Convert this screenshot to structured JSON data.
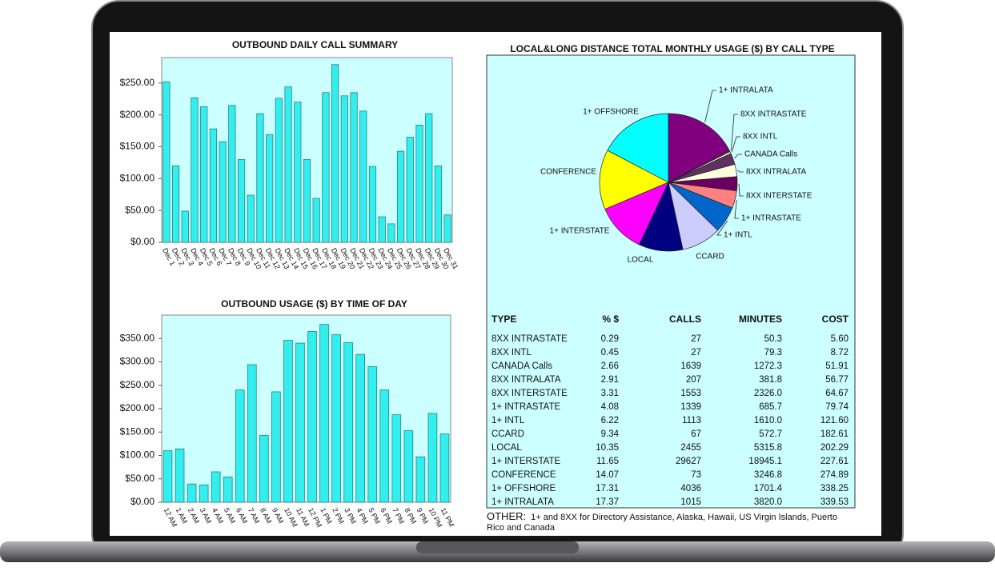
{
  "chart_data": [
    {
      "type": "bar",
      "title": "OUTBOUND DAILY CALL SUMMARY",
      "color": "#33eeee",
      "categories": [
        "Dec 1",
        "Dec 2",
        "Dec 3",
        "Dec 4",
        "Dec 5",
        "Dec 6",
        "Dec 7",
        "Dec 8",
        "Dec 9",
        "Dec 10",
        "Dec 11",
        "Dec 12",
        "Dec 13",
        "Dec 14",
        "Dec 15",
        "Dec 16",
        "Dec 17",
        "Dec 18",
        "Dec 19",
        "Dec 20",
        "Dec 21",
        "Dec 22",
        "Dec 23",
        "Dec 24",
        "Dec 25",
        "Dec 26",
        "Dec 27",
        "Dec 28",
        "Dec 29",
        "Dec 30",
        "Dec 31"
      ],
      "values": [
        252,
        120,
        49,
        227,
        213,
        178,
        158,
        215,
        130,
        74,
        202,
        169,
        226,
        244,
        220,
        130,
        69,
        235,
        279,
        230,
        235,
        206,
        119,
        40,
        29,
        143,
        165,
        184,
        202,
        120,
        43
      ],
      "ylim": [
        0,
        290
      ],
      "yticks": [
        {
          "value": 0,
          "label": "$0.00"
        },
        {
          "value": 50,
          "label": "$50.00"
        },
        {
          "value": 100,
          "label": "$100.00"
        },
        {
          "value": 150,
          "label": "$150.00"
        },
        {
          "value": 200,
          "label": "$200.00"
        },
        {
          "value": 250,
          "label": "$250.00"
        }
      ]
    },
    {
      "type": "bar",
      "title": "OUTBOUND USAGE ($) BY TIME OF DAY",
      "color": "#33eeee",
      "categories": [
        "12 AM",
        "1 AM",
        "2 AM",
        "3 AM",
        "4 AM",
        "5 AM",
        "6 AM",
        "7 AM",
        "8 AM",
        "9 AM",
        "10 AM",
        "11 AM",
        "12 PM",
        "1 PM",
        "2 PM",
        "3 PM",
        "4 PM",
        "5 PM",
        "6 PM",
        "7 PM",
        "8 PM",
        "9 PM",
        "10 PM",
        "11 PM"
      ],
      "values": [
        110,
        114,
        39,
        37,
        65,
        54,
        240,
        294,
        143,
        236,
        346,
        340,
        365,
        380,
        358,
        341,
        316,
        290,
        240,
        187,
        153,
        97,
        190,
        146
      ],
      "ylim": [
        0,
        400
      ],
      "yticks": [
        {
          "value": 0,
          "label": "$0.00"
        },
        {
          "value": 50,
          "label": "$50.00"
        },
        {
          "value": 100,
          "label": "$100.00"
        },
        {
          "value": 150,
          "label": "$150.00"
        },
        {
          "value": 200,
          "label": "$200.00"
        },
        {
          "value": 250,
          "label": "$250.00"
        },
        {
          "value": 300,
          "label": "$300.00"
        },
        {
          "value": 350,
          "label": "$350.00"
        }
      ]
    },
    {
      "type": "pie",
      "title": "LOCAL&LONG DISTANCE TOTAL MONTHLY USAGE ($) BY CALL TYPE",
      "categories": [
        "1+ INTRALATA",
        "8XX INTRASTATE",
        "8XX INTL",
        "CANADA Calls",
        "8XX INTRALATA",
        "8XX INTERSTATE",
        "1+ INTRASTATE",
        "1+ INTL",
        "CCARD",
        "LOCAL",
        "1+ INTERSTATE",
        "CONFERENCE",
        "1+ OFFSHORE"
      ],
      "values": [
        17.37,
        0.29,
        0.45,
        2.66,
        2.91,
        3.31,
        4.08,
        6.22,
        9.34,
        10.35,
        11.65,
        14.07,
        17.31
      ],
      "colors": [
        "#800080",
        "#804040",
        "#ffffff",
        "#603060",
        "#ffffe0",
        "#6a0060",
        "#ff8080",
        "#0066cc",
        "#ccccff",
        "#000080",
        "#ff00ff",
        "#ffff00",
        "#00ffff"
      ]
    }
  ],
  "table": {
    "columns": [
      "TYPE",
      "% $",
      "CALLS",
      "MINUTES",
      "COST"
    ],
    "rows": [
      [
        "8XX INTRASTATE",
        "0.29",
        "27",
        "50.3",
        "5.60"
      ],
      [
        "8XX INTL",
        "0.45",
        "27",
        "79.3",
        "8.72"
      ],
      [
        "CANADA Calls",
        "2.66",
        "1639",
        "1272.3",
        "51.91"
      ],
      [
        "8XX INTRALATA",
        "2.91",
        "207",
        "381.8",
        "56.77"
      ],
      [
        "8XX INTERSTATE",
        "3.31",
        "1553",
        "2326.0",
        "64.67"
      ],
      [
        "1+ INTRASTATE",
        "4.08",
        "1339",
        "685.7",
        "79.74"
      ],
      [
        "1+ INTL",
        "6.22",
        "1113",
        "1610.0",
        "121.60"
      ],
      [
        "CCARD",
        "9.34",
        "67",
        "572.7",
        "182.61"
      ],
      [
        "LOCAL",
        "10.35",
        "2455",
        "5315.8",
        "202.29"
      ],
      [
        "1+ INTERSTATE",
        "11.65",
        "29627",
        "18945.1",
        "227.61"
      ],
      [
        "CONFERENCE",
        "14.07",
        "73",
        "3246.8",
        "274.89"
      ],
      [
        "1+ OFFSHORE",
        "17.31",
        "4036",
        "1701.4",
        "338.25"
      ],
      [
        "1+ INTRALATA",
        "17.37",
        "1015",
        "3820.0",
        "339.53"
      ]
    ]
  },
  "note": {
    "label": "OTHER:",
    "text": "1+ and 8XX for Directory Assistance, Alaska, Hawaii, US Virgin Islands, Puerto Rico and Canada"
  }
}
